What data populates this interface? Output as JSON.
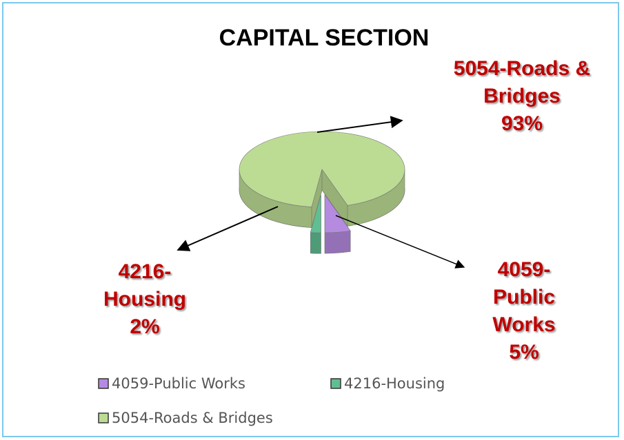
{
  "chart_data": {
    "type": "pie",
    "title": "CAPITAL SECTION",
    "categories": [
      "4059-Public Works",
      "4216-Housing",
      "5054-Roads & Bridges"
    ],
    "values": [
      5,
      2,
      93
    ],
    "value_labels": [
      "5%",
      "2%",
      "93%"
    ],
    "colors": [
      "#b58be0",
      "#5fbf92",
      "#bcdc94"
    ],
    "legend": "bottom"
  }
}
